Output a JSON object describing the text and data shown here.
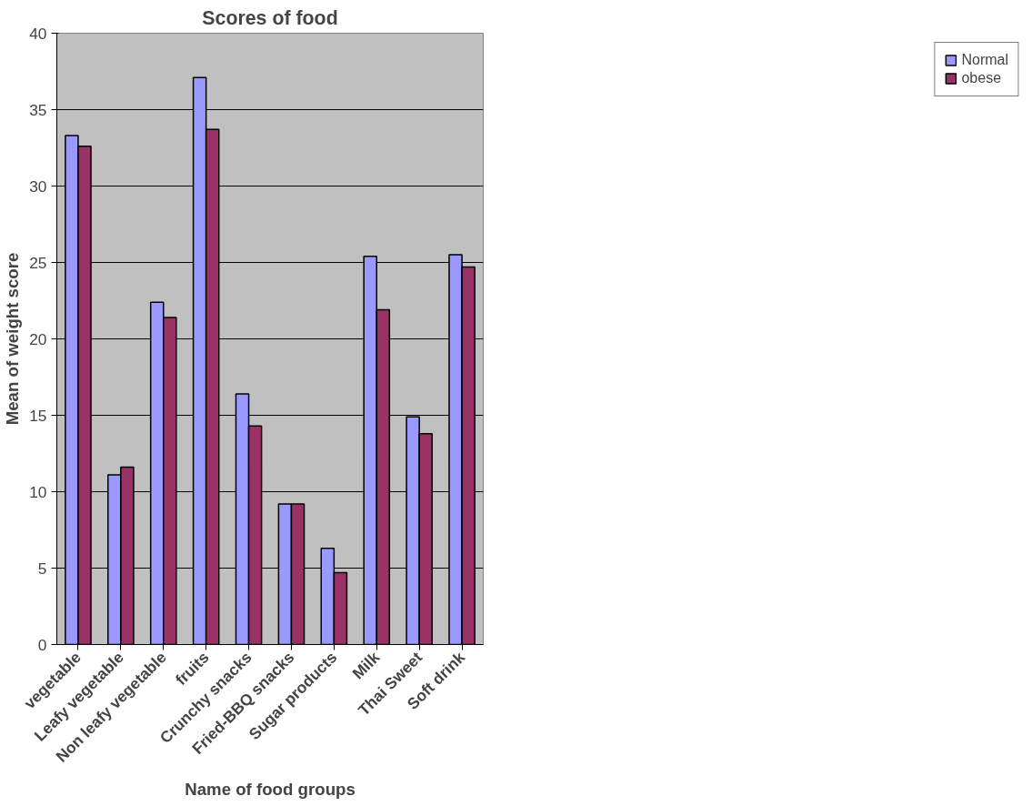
{
  "chart_data": {
    "type": "bar",
    "title": "Scores of food",
    "xlabel": "Name of food groups",
    "ylabel": "Mean of weight score",
    "categories": [
      "vegetable",
      "Leafy vegetable",
      "Non leafy vegetable",
      "fruits",
      "Crunchy snacks",
      "Fried-BBQ snacks",
      "Sugar products",
      "Milk",
      "Thai Sweet",
      "Soft drink"
    ],
    "series": [
      {
        "name": "Normal",
        "color": "#9999ff",
        "values": [
          33.3,
          11.1,
          22.4,
          37.1,
          16.4,
          9.2,
          6.3,
          25.4,
          14.9,
          25.5
        ]
      },
      {
        "name": "obese",
        "color": "#993366",
        "values": [
          32.6,
          11.6,
          21.4,
          33.7,
          14.3,
          9.2,
          4.7,
          21.9,
          13.8,
          24.7
        ]
      }
    ],
    "ylim": [
      0,
      40
    ],
    "yticks": [
      0,
      5,
      10,
      15,
      20,
      25,
      30,
      35,
      40
    ],
    "grid": "y",
    "legend": "right"
  }
}
